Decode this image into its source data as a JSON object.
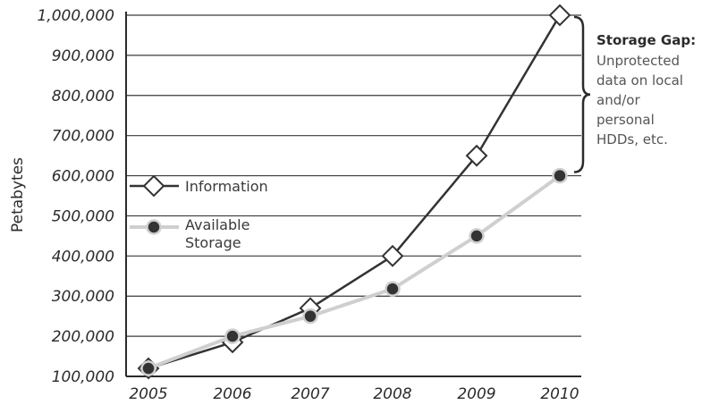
{
  "chart_data": {
    "type": "line",
    "x": [
      "2005",
      "2006",
      "2007",
      "2008",
      "2009",
      "2010"
    ],
    "series": [
      {
        "name": "Information",
        "values": [
          120000,
          185000,
          270000,
          400000,
          650000,
          1000000
        ],
        "color": "#333333",
        "marker": "diamond"
      },
      {
        "name": "Available Storage",
        "values": [
          120000,
          200000,
          250000,
          318000,
          450000,
          600000
        ],
        "color": "#d8d8d8",
        "marker": "circle"
      }
    ],
    "ylabel": "Petabytes",
    "ylim": [
      100000,
      1000000
    ],
    "yticks": [
      "1,000,000",
      "900,000",
      "800,000",
      "700,000",
      "600,000",
      "500,000",
      "400,000",
      "300,000",
      "200,000",
      "100,000"
    ],
    "grid": true,
    "legend": {
      "placement": "left",
      "items": [
        {
          "lines": [
            "Information"
          ]
        },
        {
          "lines": [
            "Available",
            "Storage"
          ]
        }
      ]
    },
    "annotation": {
      "title": "Storage Gap:",
      "lines": [
        "Unprotected",
        "data on local",
        "and/or",
        "personal",
        "HDDs, etc."
      ]
    }
  }
}
